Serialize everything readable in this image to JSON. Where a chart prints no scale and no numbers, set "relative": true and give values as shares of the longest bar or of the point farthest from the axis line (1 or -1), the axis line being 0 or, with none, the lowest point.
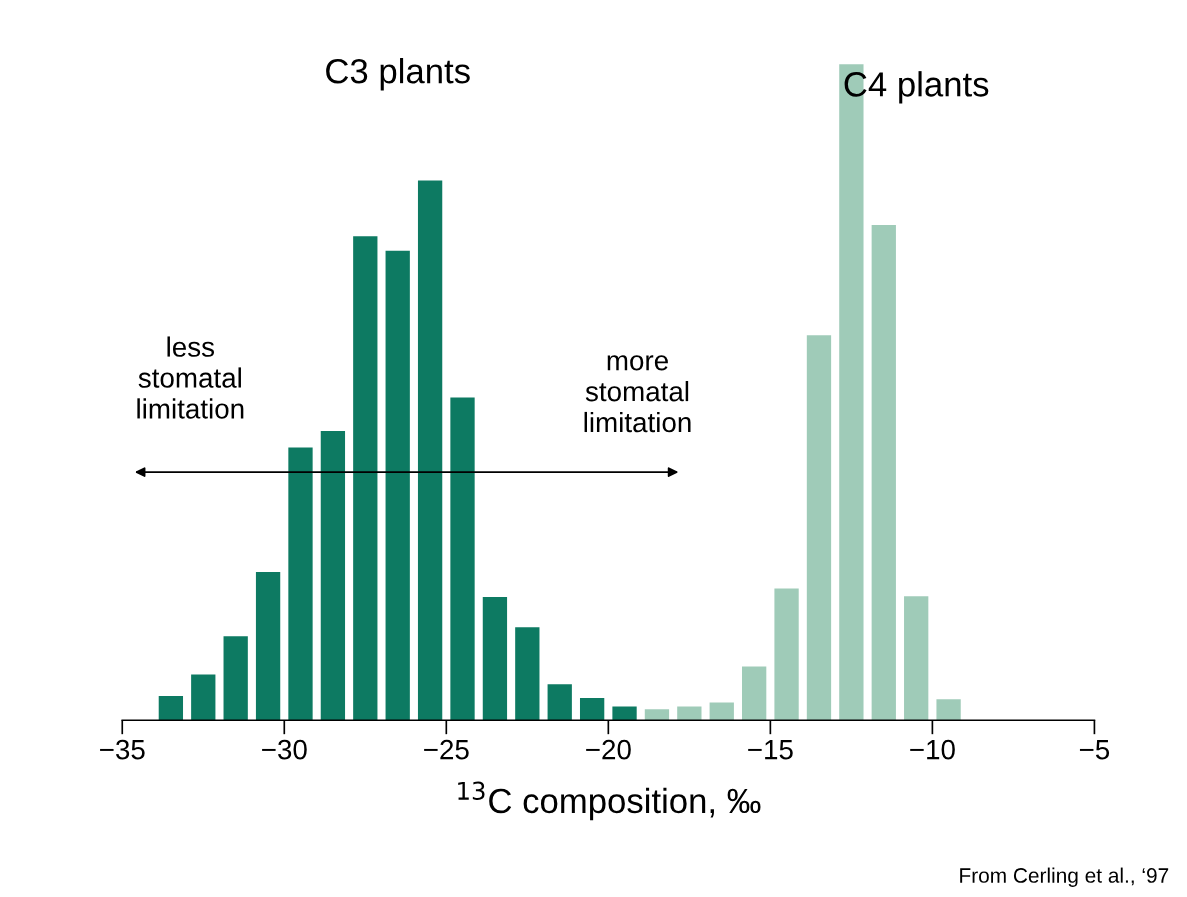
{
  "chart_data": {
    "type": "bar",
    "relative": true,
    "series": [
      {
        "name": "C3 plants",
        "color": "#0d7a62",
        "x": [
          -33.5,
          -32.5,
          -31.5,
          -30.5,
          -29.5,
          -28.5,
          -27.5,
          -26.5,
          -25.5,
          -24.5,
          -23.5,
          -22.5,
          -21.5,
          -20.5,
          -19.5
        ],
        "values": [
          0.037,
          0.07,
          0.128,
          0.226,
          0.416,
          0.441,
          0.738,
          0.716,
          0.823,
          0.492,
          0.188,
          0.142,
          0.055,
          0.034,
          0.021
        ]
      },
      {
        "name": "C4 plants",
        "color": "#9fcbb8",
        "x": [
          -18.5,
          -17.5,
          -16.5,
          -15.5,
          -14.5,
          -13.5,
          -12.5,
          -11.5,
          -10.5,
          -9.5
        ],
        "values": [
          0.017,
          0.021,
          0.027,
          0.082,
          0.201,
          0.587,
          1.0,
          0.755,
          0.189,
          0.032
        ]
      }
    ],
    "xlim": [
      -35,
      -5
    ],
    "xticks": [
      -35,
      -30,
      -25,
      -20,
      -15,
      -10,
      -5
    ],
    "tick_labels": "x",
    "xlabel": "$^{13}$C composition, ‰",
    "annotations": [
      "less\nstomatal\nlimitation",
      "more\nstomatal\nlimitation",
      "From Cerling et al., ‘97"
    ]
  }
}
